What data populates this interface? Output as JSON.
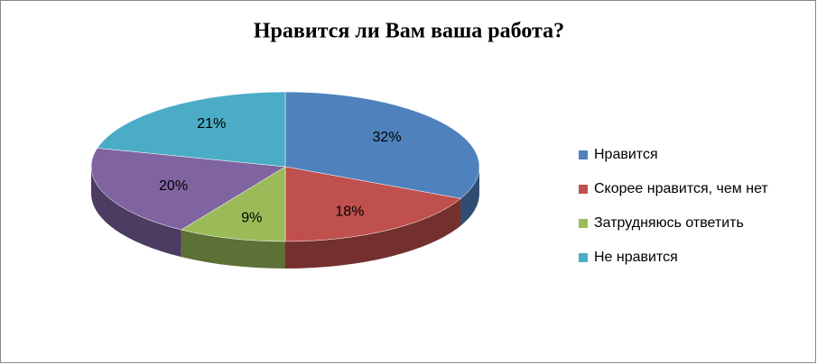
{
  "chart_data": {
    "type": "pie",
    "title": "Нравится ли Вам ваша работа?",
    "categories": [
      "Нравится",
      "Скорее нравится, чем нет",
      "Затрудняюсь ответить",
      null,
      "Не нравится"
    ],
    "values": [
      32,
      18,
      9,
      20,
      21
    ],
    "value_labels": [
      "32%",
      "18%",
      "9%",
      "20%",
      "21%"
    ],
    "colors": [
      "#4f81bd",
      "#c0504d",
      "#9bbb59",
      "#8064a2",
      "#4bacc6"
    ],
    "legend": "right"
  }
}
